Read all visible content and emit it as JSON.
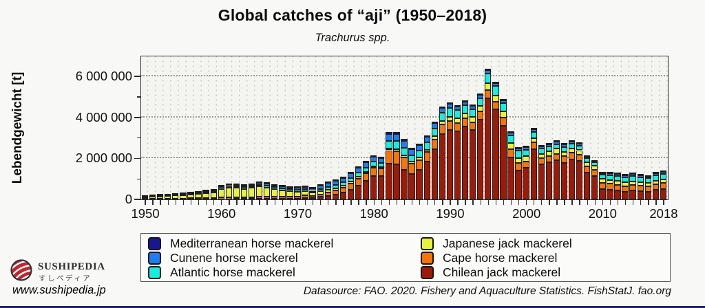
{
  "header": {},
  "chart_data": {
    "type": "bar",
    "stacked": true,
    "title": "Global catches of “aji” (1950–2018)",
    "subtitle": "Trachurus spp.",
    "ylabel": "Lebendgewicht [t]",
    "unit": "tonnes",
    "ylim": [
      0,
      7000000
    ],
    "grid": "dotted",
    "legend_position": "bottom",
    "ytick_values": [
      0,
      2000000,
      4000000,
      6000000
    ],
    "ytick_labels": [
      "0",
      "2 000 000",
      "4 000 000",
      "6 000 000"
    ],
    "yminor_values": [
      1000000,
      3000000,
      5000000
    ],
    "xtick_years": [
      1950,
      1960,
      1970,
      1980,
      1990,
      2000,
      2010,
      2018
    ],
    "xtick_labels": [
      "1950",
      "1960",
      "1970",
      "1980",
      "1990",
      "2000",
      "2010",
      "2018"
    ],
    "year_start": 1950,
    "year_end": 2018,
    "series": [
      {
        "name": "Chilean jack mackerel",
        "color": "#9e1a08",
        "values": [
          5000,
          5000,
          6000,
          6000,
          8000,
          8000,
          10000,
          10000,
          12000,
          12000,
          15000,
          15000,
          20000,
          20000,
          25000,
          30000,
          30000,
          30000,
          35000,
          35000,
          40000,
          80000,
          60000,
          120000,
          180000,
          250000,
          340000,
          480000,
          670000,
          900000,
          1150000,
          1150000,
          1750000,
          1700000,
          1450000,
          1250000,
          1450000,
          1850000,
          2450000,
          3200000,
          3400000,
          3320000,
          3550000,
          3380000,
          3900000,
          4950000,
          4380000,
          3600000,
          2050000,
          1420000,
          1530000,
          2450000,
          1700000,
          1800000,
          1900000,
          1780000,
          1950000,
          1870000,
          1300000,
          1150000,
          520000,
          480000,
          440000,
          380000,
          420000,
          400000,
          380000,
          470000,
          520000
        ]
      },
      {
        "name": "Cape horse mackerel",
        "color": "#f97306",
        "values": [
          25000,
          28000,
          30000,
          32000,
          35000,
          40000,
          45000,
          48000,
          55000,
          60000,
          75000,
          80000,
          80000,
          75000,
          85000,
          95000,
          95000,
          90000,
          90000,
          90000,
          100000,
          110000,
          100000,
          130000,
          160000,
          180000,
          220000,
          280000,
          330000,
          360000,
          380000,
          350000,
          650000,
          650000,
          600000,
          500000,
          480000,
          450000,
          480000,
          450000,
          420000,
          400000,
          400000,
          380000,
          380000,
          400000,
          380000,
          380000,
          400000,
          350000,
          330000,
          320000,
          310000,
          320000,
          330000,
          320000,
          330000,
          320000,
          310000,
          300000,
          290000,
          280000,
          280000,
          270000,
          270000,
          270000,
          260000,
          280000,
          290000
        ]
      },
      {
        "name": "Japanese jack mackerel",
        "color": "#e8f238",
        "values": [
          85000,
          100000,
          110000,
          125000,
          150000,
          170000,
          185000,
          200000,
          235000,
          265000,
          430000,
          480000,
          460000,
          420000,
          450000,
          500000,
          450000,
          380000,
          320000,
          270000,
          230000,
          200000,
          160000,
          150000,
          140000,
          120000,
          110000,
          100000,
          100000,
          90000,
          85000,
          80000,
          80000,
          90000,
          100000,
          110000,
          120000,
          130000,
          150000,
          180000,
          220000,
          240000,
          260000,
          280000,
          300000,
          320000,
          320000,
          330000,
          300000,
          250000,
          240000,
          230000,
          220000,
          230000,
          240000,
          230000,
          220000,
          210000,
          200000,
          190000,
          190000,
          190000,
          180000,
          180000,
          170000,
          170000,
          160000,
          170000,
          160000
        ]
      },
      {
        "name": "Atlantic horse mackerel",
        "color": "#16eede",
        "values": [
          25000,
          30000,
          35000,
          38000,
          40000,
          45000,
          50000,
          55000,
          60000,
          65000,
          75000,
          80000,
          85000,
          85000,
          90000,
          95000,
          95000,
          95000,
          95000,
          95000,
          100000,
          110000,
          100000,
          120000,
          140000,
          150000,
          160000,
          180000,
          200000,
          210000,
          220000,
          210000,
          380000,
          400000,
          380000,
          300000,
          320000,
          350000,
          380000,
          400000,
          420000,
          400000,
          380000,
          370000,
          360000,
          480000,
          450000,
          400000,
          380000,
          350000,
          320000,
          300000,
          250000,
          230000,
          220000,
          220000,
          210000,
          220000,
          190000,
          160000,
          220000,
          230000,
          250000,
          260000,
          280000,
          250000,
          230000,
          270000,
          280000
        ]
      },
      {
        "name": "Cunene horse mackerel",
        "color": "#1e7df2",
        "values": [
          5000,
          6000,
          8000,
          10000,
          12000,
          15000,
          18000,
          20000,
          25000,
          30000,
          50000,
          55000,
          60000,
          60000,
          70000,
          85000,
          90000,
          90000,
          95000,
          95000,
          110000,
          120000,
          110000,
          150000,
          180000,
          190000,
          210000,
          230000,
          250000,
          240000,
          230000,
          220000,
          340000,
          350000,
          330000,
          280000,
          280000,
          280000,
          250000,
          220000,
          200000,
          180000,
          170000,
          160000,
          150000,
          150000,
          140000,
          130000,
          120000,
          120000,
          120000,
          130000,
          120000,
          120000,
          120000,
          120000,
          110000,
          110000,
          80000,
          60000,
          70000,
          80000,
          80000,
          85000,
          90000,
          85000,
          80000,
          90000,
          90000
        ]
      },
      {
        "name": "Mediterranean horse mackerel",
        "color": "#171796",
        "values": [
          8000,
          8000,
          10000,
          10000,
          12000,
          12000,
          15000,
          15000,
          18000,
          18000,
          20000,
          20000,
          20000,
          20000,
          25000,
          25000,
          25000,
          25000,
          25000,
          25000,
          25000,
          25000,
          25000,
          30000,
          30000,
          30000,
          35000,
          40000,
          40000,
          40000,
          45000,
          45000,
          100000,
          100000,
          90000,
          70000,
          70000,
          70000,
          70000,
          60000,
          60000,
          60000,
          60000,
          60000,
          60000,
          60000,
          60000,
          60000,
          60000,
          50000,
          50000,
          50000,
          50000,
          50000,
          40000,
          40000,
          40000,
          40000,
          30000,
          30000,
          30000,
          30000,
          35000,
          35000,
          40000,
          35000,
          35000,
          40000,
          40000
        ]
      }
    ],
    "legend_entries": [
      {
        "label": "Mediterranean horse mackerel",
        "color": "#171796"
      },
      {
        "label": "Cunene horse mackerel",
        "color": "#1e7df2"
      },
      {
        "label": "Atlantic horse mackerel",
        "color": "#16eede"
      },
      {
        "label": "Japanese jack mackerel",
        "color": "#e8f238"
      },
      {
        "label": "Cape horse mackerel",
        "color": "#f97306"
      },
      {
        "label": "Chilean jack mackerel",
        "color": "#9e1a08"
      }
    ]
  },
  "footer": {
    "brand_name": "SUSHIPEDIA",
    "brand_name_jp": "すしペディア",
    "brand_url": "www.sushipedia.jp",
    "datasource": "Datasource: FAO. 2020. Fishery and Aquaculture Statistics. FishStatJ. fao.org"
  }
}
